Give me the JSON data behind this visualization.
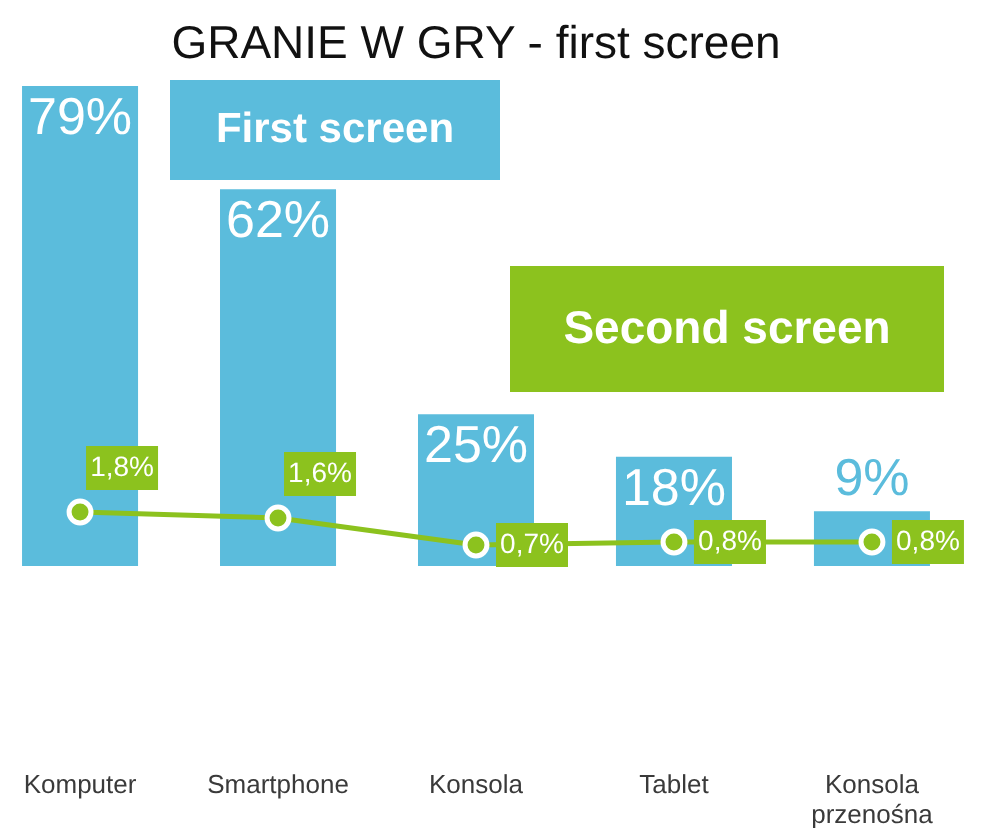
{
  "chart_data": {
    "type": "bar",
    "title": "GRANIE W GRY - first screen",
    "categories": [
      "Komputer",
      "Smartphone",
      "Konsola",
      "Tablet",
      "Konsola przenośna"
    ],
    "series": [
      {
        "name": "First screen",
        "color": "#5bbcdc",
        "values": [
          79,
          62,
          25,
          18,
          9
        ],
        "value_labels": [
          "79%",
          "62%",
          "25%",
          "18%",
          "9%"
        ]
      },
      {
        "name": "Second screen",
        "type": "line",
        "axis": "y2",
        "color": "#8cc21e",
        "values": [
          1.8,
          1.6,
          0.7,
          0.8,
          0.8
        ],
        "value_labels": [
          "1,8%",
          "1,6%",
          "0,7%",
          "0,8%",
          "0,8%"
        ]
      }
    ],
    "marker": "circle",
    "tick_labels": "x"
  }
}
